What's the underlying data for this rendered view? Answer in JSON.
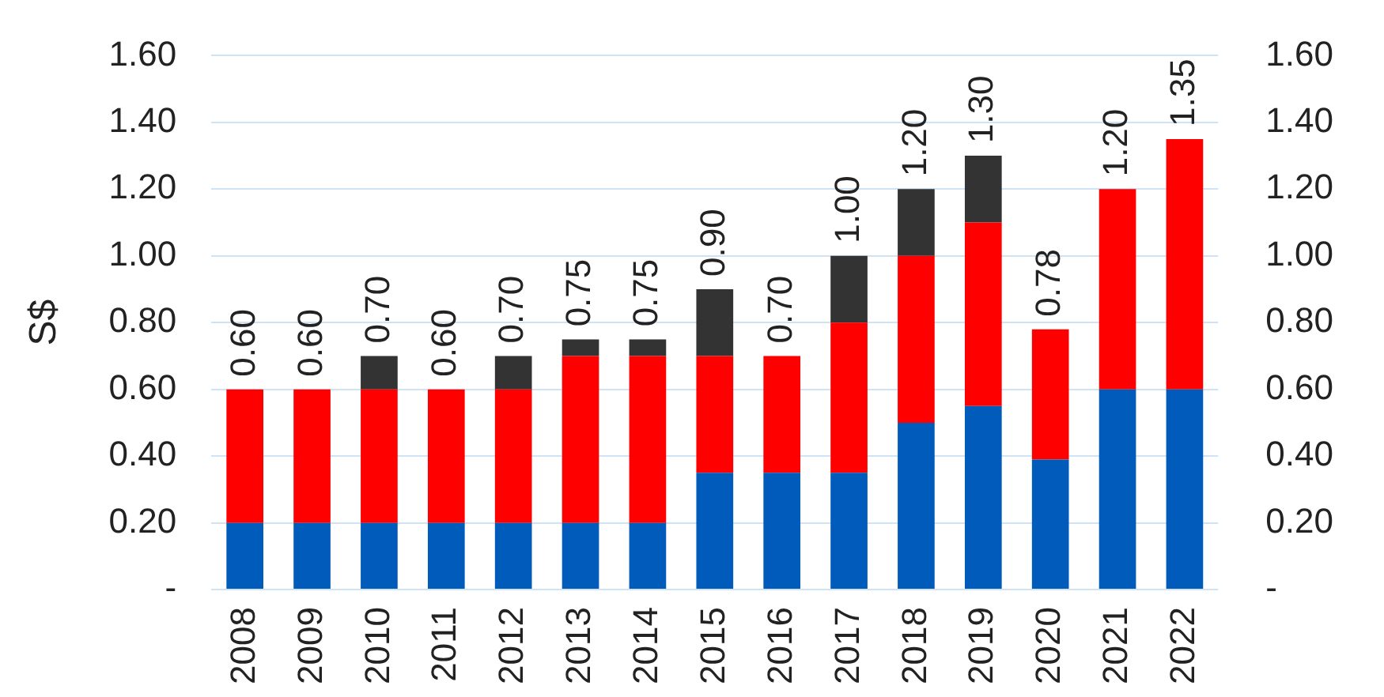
{
  "chart_data": {
    "type": "bar",
    "stacked": true,
    "ylabel": "S$",
    "categories": [
      "2008",
      "2009",
      "2010",
      "2011",
      "2012",
      "2013",
      "2014",
      "2015",
      "2016",
      "2017",
      "2018",
      "2019",
      "2020",
      "2021",
      "2022"
    ],
    "series": [
      {
        "color": "#005bbb",
        "values": [
          0.2,
          0.2,
          0.2,
          0.2,
          0.2,
          0.2,
          0.2,
          0.35,
          0.35,
          0.35,
          0.5,
          0.55,
          0.39,
          0.6,
          0.6
        ]
      },
      {
        "color": "#ff0000",
        "values": [
          0.4,
          0.4,
          0.4,
          0.4,
          0.4,
          0.5,
          0.5,
          0.35,
          0.35,
          0.45,
          0.5,
          0.55,
          0.39,
          0.6,
          0.75
        ]
      },
      {
        "color": "#333333",
        "values": [
          null,
          null,
          0.1,
          null,
          0.1,
          0.05,
          0.05,
          0.2,
          null,
          0.2,
          0.2,
          0.2,
          null,
          null,
          null
        ]
      }
    ],
    "totals": [
      "0.60",
      "0.60",
      "0.70",
      "0.60",
      "0.70",
      "0.75",
      "0.75",
      "0.90",
      "0.70",
      "1.00",
      "1.20",
      "1.30",
      "0.78",
      "1.20",
      "1.35"
    ],
    "ylim": [
      0,
      1.6
    ],
    "yticks": [
      {
        "value": 0,
        "label": "-"
      },
      {
        "value": 0.2,
        "label": "0.20"
      },
      {
        "value": 0.4,
        "label": "0.40"
      },
      {
        "value": 0.6,
        "label": "0.60"
      },
      {
        "value": 0.8,
        "label": "0.80"
      },
      {
        "value": 1.0,
        "label": "1.00"
      },
      {
        "value": 1.2,
        "label": "1.20"
      },
      {
        "value": 1.4,
        "label": "1.40"
      },
      {
        "value": 1.6,
        "label": "1.60"
      }
    ],
    "y2lim": [
      0,
      1.6
    ],
    "y2ticks": [
      {
        "value": 0,
        "label": "-"
      },
      {
        "value": 0.2,
        "label": "0.20"
      },
      {
        "value": 0.4,
        "label": "0.40"
      },
      {
        "value": 0.6,
        "label": "0.60"
      },
      {
        "value": 0.8,
        "label": "0.80"
      },
      {
        "value": 1.0,
        "label": "1.00"
      },
      {
        "value": 1.2,
        "label": "1.20"
      },
      {
        "value": 1.4,
        "label": "1.40"
      },
      {
        "value": 1.6,
        "label": "1.60"
      }
    ],
    "grid": "y",
    "legend": false
  }
}
